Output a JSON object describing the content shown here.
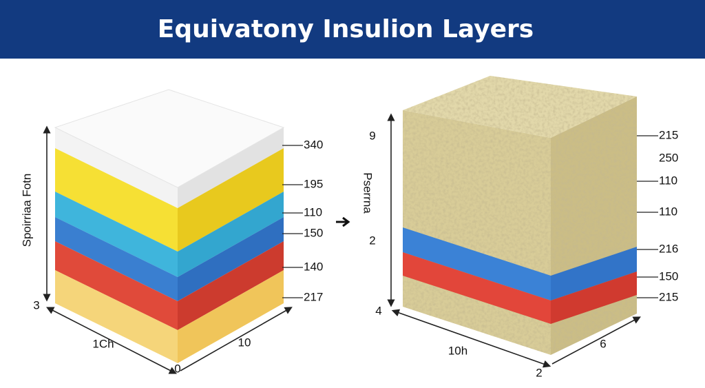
{
  "header": {
    "title": "Equivatony Insulion Layers"
  },
  "left_block": {
    "axis_label": "Spoirriaa Fotn",
    "axis_mark": "3",
    "bottom_left_label": "1Ch",
    "bottom_corner_label": "0",
    "bottom_right_label": "10",
    "layer_labels": [
      "340",
      "195",
      "110",
      "150",
      "140",
      "217"
    ]
  },
  "right_block": {
    "axis_label": "Pserrna",
    "axis_marks": [
      "9",
      "2",
      "4"
    ],
    "bottom_left_label": "10h",
    "bottom_corner_label": "2",
    "bottom_right_label": "6",
    "layer_labels": [
      "215",
      "250",
      "110",
      "110",
      "216",
      "150",
      "215"
    ]
  }
}
